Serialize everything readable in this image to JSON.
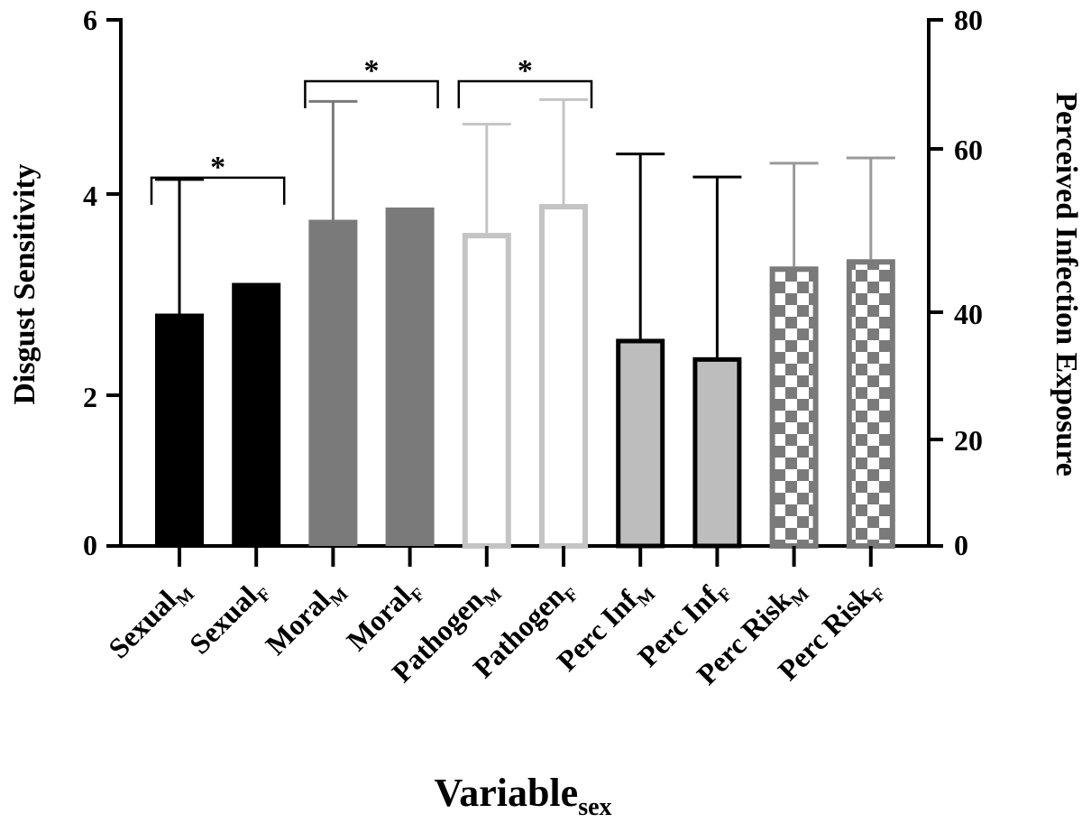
{
  "chart_data": {
    "type": "bar",
    "y_left": {
      "label": "Disgust Sensitivity",
      "ylim": [
        0,
        6
      ],
      "ticks": [
        "0",
        "2",
        "4",
        "6"
      ]
    },
    "y_right": {
      "label": "Perceived Infection Exposure",
      "ylim": [
        0,
        80
      ],
      "ticks": [
        "0",
        "20",
        "40",
        "60",
        "80"
      ]
    },
    "x_label": {
      "main": "Variable",
      "sub": "sex"
    },
    "significance_marker": "*",
    "colors": {
      "black": "#000000",
      "dark_gray": "#7a7a7a",
      "light_gray": "#c4c4c4",
      "mid_gray": "#999999",
      "fill_gray": "#bdbdbd",
      "white": "#ffffff"
    },
    "bars": [
      {
        "base": "Sexual",
        "sub": "M",
        "axis": "left",
        "value": 2.65,
        "err": 4.18,
        "style": "solid-black"
      },
      {
        "base": "Sexual",
        "sub": "F",
        "axis": "left",
        "value": 3.0,
        "err": null,
        "style": "solid-black"
      },
      {
        "base": "Moral",
        "sub": "M",
        "axis": "left",
        "value": 3.72,
        "err": 5.07,
        "style": "solid-gray"
      },
      {
        "base": "Moral",
        "sub": "F",
        "axis": "left",
        "value": 3.86,
        "err": null,
        "style": "solid-gray"
      },
      {
        "base": "Pathogen",
        "sub": "M",
        "axis": "left",
        "value": 3.57,
        "err": 4.81,
        "style": "open-light"
      },
      {
        "base": "Pathogen",
        "sub": "F",
        "axis": "left",
        "value": 3.9,
        "err": 5.09,
        "style": "open-light"
      },
      {
        "base": "Perc Inf",
        "sub": "M",
        "axis": "right",
        "value": 31.5,
        "err": 59.6,
        "style": "gray-black-border"
      },
      {
        "base": "Perc Inf",
        "sub": "F",
        "axis": "right",
        "value": 28.7,
        "err": 56.1,
        "style": "gray-black-border"
      },
      {
        "base": "Perc Risk",
        "sub": "M",
        "axis": "right",
        "value": 42.5,
        "err": 58.2,
        "style": "checker"
      },
      {
        "base": "Perc Risk",
        "sub": "F",
        "axis": "right",
        "value": 43.6,
        "err": 59.0,
        "style": "checker"
      }
    ],
    "brackets": [
      {
        "from": 0,
        "to": 1,
        "y": 4.2
      },
      {
        "from": 2,
        "to": 3,
        "y": 5.3
      },
      {
        "from": 4,
        "to": 5,
        "y": 5.3
      }
    ]
  }
}
